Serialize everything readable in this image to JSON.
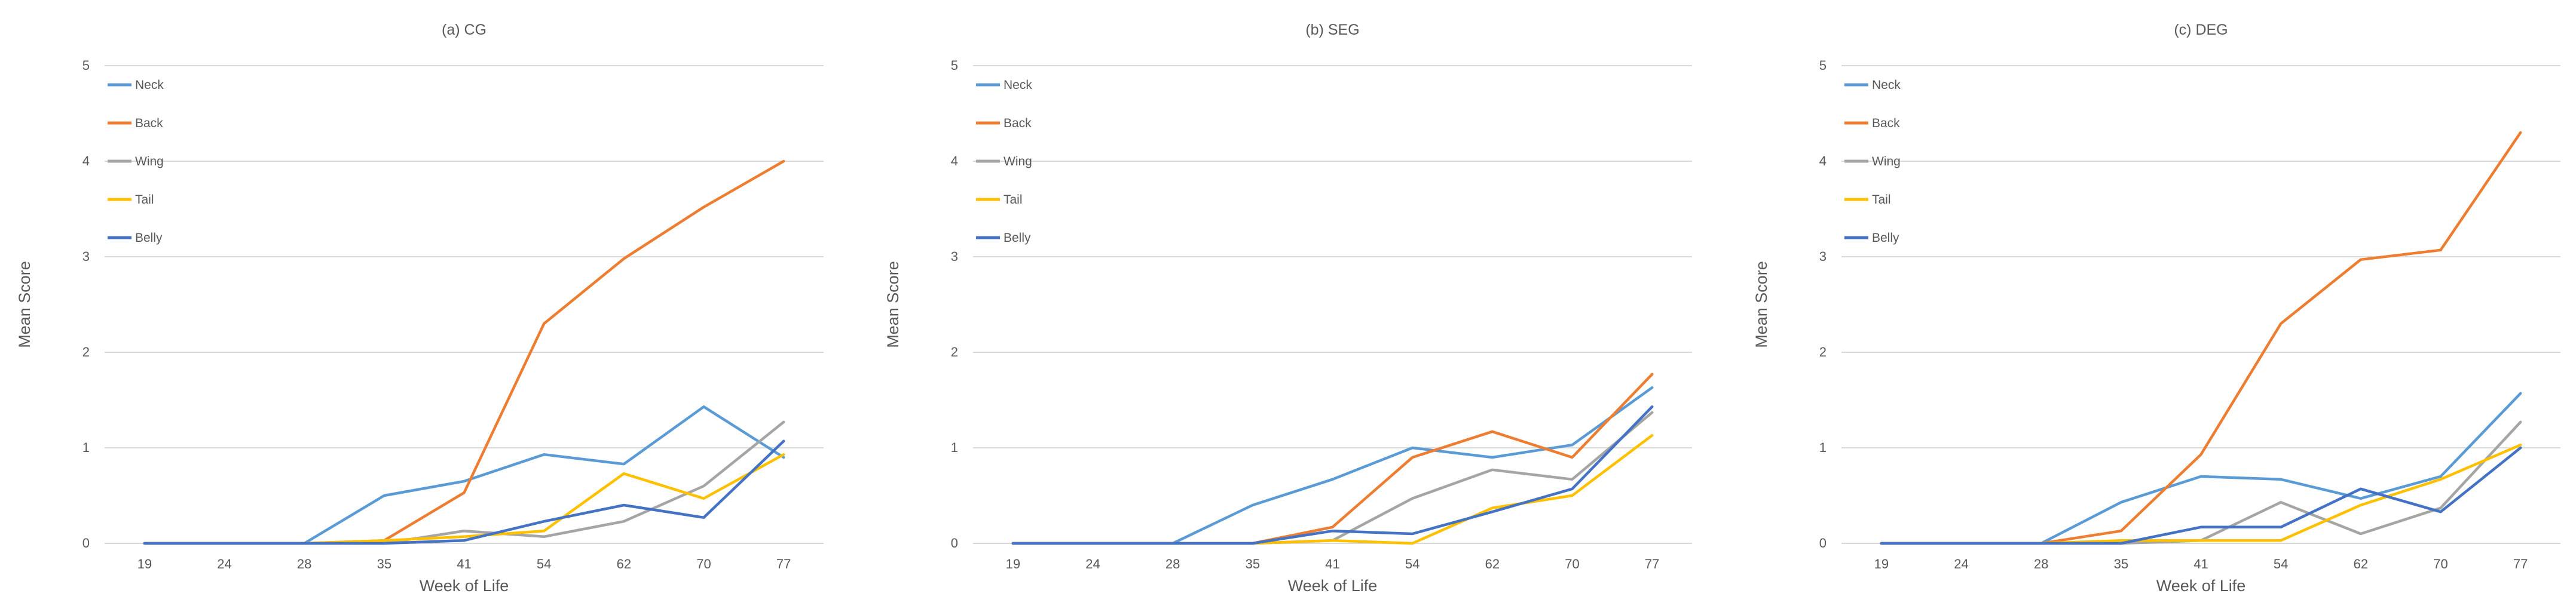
{
  "colors": {
    "Neck": "#5B9BD5",
    "Back": "#ED7D31",
    "Wing": "#A5A5A5",
    "Tail": "#FFC000",
    "Belly": "#4472C4",
    "grid": "#D9D9D9",
    "text": "#595959"
  },
  "chart_data": [
    {
      "type": "line",
      "title": "(a) CG",
      "xlabel": "Week of Life",
      "ylabel": "Mean Score",
      "categories": [
        "19",
        "24",
        "28",
        "35",
        "41",
        "54",
        "62",
        "70",
        "77"
      ],
      "yticks": [
        "0",
        "1",
        "2",
        "3",
        "4",
        "5"
      ],
      "ylim": [
        0,
        5
      ],
      "grid": "horizontal",
      "legend_position": "top-left",
      "series": [
        {
          "name": "Neck",
          "values": [
            0,
            0,
            0,
            0.5,
            0.65,
            0.93,
            0.83,
            1.43,
            0.9
          ]
        },
        {
          "name": "Back",
          "values": [
            0,
            0,
            0,
            0.03,
            0.53,
            2.3,
            2.98,
            3.52,
            4.0
          ]
        },
        {
          "name": "Wing",
          "values": [
            0,
            0,
            0,
            0,
            0.13,
            0.07,
            0.23,
            0.6,
            1.27
          ]
        },
        {
          "name": "Tail",
          "values": [
            0,
            0,
            0,
            0.03,
            0.07,
            0.13,
            0.73,
            0.47,
            0.93
          ]
        },
        {
          "name": "Belly",
          "values": [
            0,
            0,
            0,
            0,
            0.03,
            0.23,
            0.4,
            0.27,
            1.07
          ]
        }
      ]
    },
    {
      "type": "line",
      "title": "(b) SEG",
      "xlabel": "Week of Life",
      "ylabel": "Mean Score",
      "categories": [
        "19",
        "24",
        "28",
        "35",
        "41",
        "54",
        "62",
        "70",
        "77"
      ],
      "yticks": [
        "0",
        "1",
        "2",
        "3",
        "4",
        "5"
      ],
      "ylim": [
        0,
        5
      ],
      "grid": "horizontal",
      "legend_position": "top-left",
      "series": [
        {
          "name": "Neck",
          "values": [
            0,
            0,
            0,
            0.4,
            0.67,
            1.0,
            0.9,
            1.03,
            1.63
          ]
        },
        {
          "name": "Back",
          "values": [
            0,
            0,
            0,
            0,
            0.17,
            0.9,
            1.17,
            0.9,
            1.77
          ]
        },
        {
          "name": "Wing",
          "values": [
            0,
            0,
            0,
            0,
            0.03,
            0.47,
            0.77,
            0.67,
            1.37
          ]
        },
        {
          "name": "Tail",
          "values": [
            0,
            0,
            0,
            0,
            0.03,
            0,
            0.37,
            0.5,
            1.13
          ]
        },
        {
          "name": "Belly",
          "values": [
            0,
            0,
            0,
            0,
            0.13,
            0.1,
            0.33,
            0.57,
            1.43
          ]
        }
      ]
    },
    {
      "type": "line",
      "title": "(c) DEG",
      "xlabel": "Week of Life",
      "ylabel": "Mean Score",
      "categories": [
        "19",
        "24",
        "28",
        "35",
        "41",
        "54",
        "62",
        "70",
        "77"
      ],
      "yticks": [
        "0",
        "1",
        "2",
        "3",
        "4",
        "5"
      ],
      "ylim": [
        0,
        5
      ],
      "grid": "horizontal",
      "legend_position": "top-left",
      "series": [
        {
          "name": "Neck",
          "values": [
            0,
            0,
            0,
            0.43,
            0.7,
            0.67,
            0.47,
            0.7,
            1.57
          ]
        },
        {
          "name": "Back",
          "values": [
            0,
            0,
            0,
            0.13,
            0.93,
            2.3,
            2.97,
            3.07,
            4.3
          ]
        },
        {
          "name": "Wing",
          "values": [
            0,
            0,
            0,
            0,
            0.03,
            0.43,
            0.1,
            0.37,
            1.27
          ]
        },
        {
          "name": "Tail",
          "values": [
            0,
            0,
            0,
            0.03,
            0.03,
            0.03,
            0.4,
            0.67,
            1.03
          ]
        },
        {
          "name": "Belly",
          "values": [
            0,
            0,
            0,
            0,
            0.17,
            0.17,
            0.57,
            0.33,
            1.0
          ]
        }
      ]
    }
  ]
}
